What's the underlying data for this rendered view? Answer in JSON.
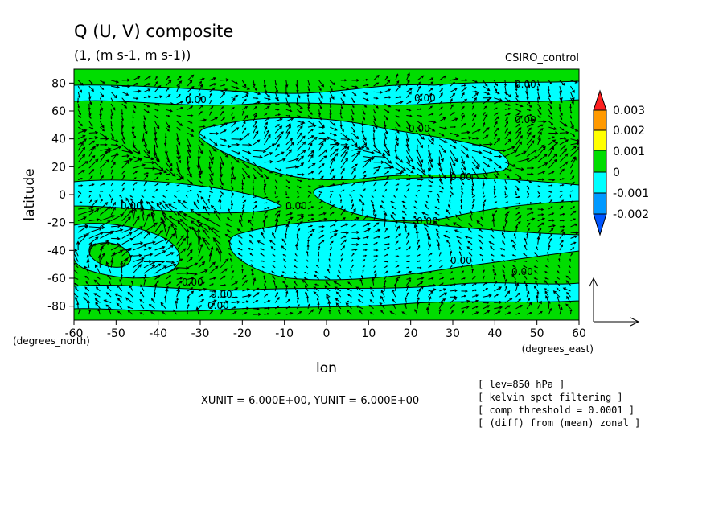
{
  "header": {
    "title": "Q (U, V) composite",
    "subtitle": "(1, (m s-1, m s-1))",
    "run_label": "CSIRO_control"
  },
  "chart_data": {
    "type": "heatmap",
    "overlay": "vectors",
    "xlabel": "lon",
    "ylabel": "latitude",
    "x_unit_label": "(degrees_east)",
    "y_unit_label": "(degrees_north)",
    "xlim": [
      -60,
      60
    ],
    "ylim": [
      -90,
      90
    ],
    "x_ticks": [
      -60,
      -50,
      -40,
      -30,
      -20,
      -10,
      0,
      10,
      20,
      30,
      40,
      50,
      60
    ],
    "y_ticks": [
      -80,
      -60,
      -40,
      -20,
      0,
      20,
      40,
      60,
      80
    ],
    "contour_label": "0.00",
    "colorbar": {
      "levels": [
        "0.003",
        "0.002",
        "0.001",
        "0",
        "-0.001",
        "-0.002"
      ],
      "colors": {
        "above_0.003": "#ff2020",
        "0.002_to_0.003": "#ff9900",
        "0.001_to_0.002": "#ffff00",
        "0_to_0.001": "#00dd00",
        "-0.001_to_0": "#00ffff",
        "-0.002_to_-0.001": "#0099ff",
        "below_-0.002": "#0055ff"
      }
    },
    "bands": [
      {
        "lat": -90,
        "sign": "+"
      },
      {
        "lat": -75,
        "sign": "-"
      },
      {
        "lat": -62,
        "sign": "+"
      },
      {
        "lat": -45,
        "sign": "-"
      },
      {
        "lat": -25,
        "sign": "-"
      },
      {
        "lat": -12,
        "sign": "+"
      },
      {
        "lat": 0,
        "sign": "-"
      },
      {
        "lat": 15,
        "sign": "-"
      },
      {
        "lat": 30,
        "sign": "+"
      },
      {
        "lat": 45,
        "sign": "-"
      },
      {
        "lat": 60,
        "sign": "+"
      },
      {
        "lat": 72,
        "sign": "-"
      },
      {
        "lat": 85,
        "sign": "+"
      }
    ],
    "vector_scale": "XUNIT = 6.000E+00, YUNIT = 6.000E+00"
  },
  "notes": [
    "[ lev=850 hPa ]",
    "[ kelvin spct filtering ]",
    "[ comp threshold = 0.0001 ]",
    "[ (diff) from (mean) zonal ]"
  ]
}
